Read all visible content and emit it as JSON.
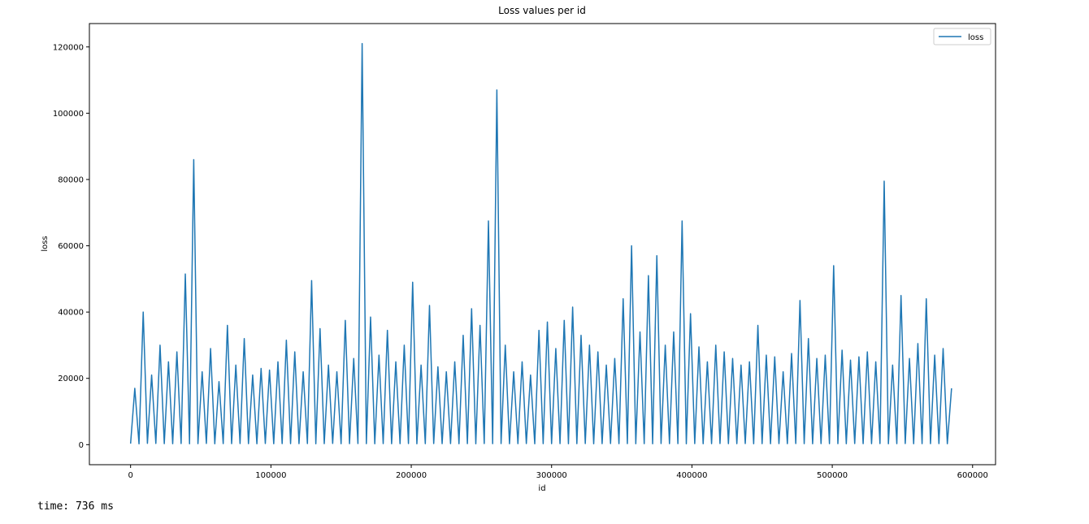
{
  "chart_data": {
    "type": "line",
    "title": "Loss values per id",
    "x_label": "id",
    "y_label": "loss",
    "x": [
      0,
      3000,
      6000,
      9000,
      12000,
      15000,
      18000,
      21000,
      24000,
      27000,
      30000,
      33000,
      36000,
      39000,
      42000,
      45000,
      48000,
      51000,
      54000,
      57000,
      60000,
      63000,
      66000,
      69000,
      72000,
      75000,
      78000,
      81000,
      84000,
      87000,
      90000,
      93000,
      96000,
      99000,
      102000,
      105000,
      108000,
      111000,
      114000,
      117000,
      120000,
      123000,
      126000,
      129000,
      132000,
      135000,
      138000,
      141000,
      144000,
      147000,
      150000,
      153000,
      156000,
      159000,
      162000,
      165000,
      168000,
      171000,
      174000,
      177000,
      180000,
      183000,
      186000,
      189000,
      192000,
      195000,
      198000,
      201000,
      204000,
      207000,
      210000,
      213000,
      216000,
      219000,
      222000,
      225000,
      228000,
      231000,
      234000,
      237000,
      240000,
      243000,
      246000,
      249000,
      252000,
      255000,
      258000,
      261000,
      264000,
      267000,
      270000,
      273000,
      276000,
      279000,
      282000,
      285000,
      288000,
      291000,
      294000,
      297000,
      300000,
      303000,
      306000,
      309000,
      312000,
      315000,
      318000,
      321000,
      324000,
      327000,
      330000,
      333000,
      336000,
      339000,
      342000,
      345000,
      348000,
      351000,
      354000,
      357000,
      360000,
      363000,
      366000,
      369000,
      372000,
      375000,
      378000,
      381000,
      384000,
      387000,
      390000,
      393000,
      396000,
      399000,
      402000,
      405000,
      408000,
      411000,
      414000,
      417000,
      420000,
      423000,
      426000,
      429000,
      432000,
      435000,
      438000,
      441000,
      444000,
      447000,
      450000,
      453000,
      456000,
      459000,
      462000,
      465000,
      468000,
      471000,
      474000,
      477000,
      480000,
      483000,
      486000,
      489000,
      492000,
      495000,
      498000,
      501000,
      504000,
      507000,
      510000,
      513000,
      516000,
      519000,
      522000,
      525000,
      528000,
      531000,
      534000,
      537000,
      540000,
      543000,
      546000,
      549000,
      552000,
      555000,
      558000,
      561000,
      564000,
      567000,
      570000,
      573000,
      576000,
      579000,
      582000,
      585000
    ],
    "series": [
      {
        "name": "loss",
        "color": "#1f77b4",
        "values": [
          300,
          17000,
          250,
          40000,
          400,
          21000,
          350,
          30000,
          300,
          25000,
          280,
          28000,
          320,
          51500,
          260,
          86000,
          300,
          22000,
          350,
          29000,
          270,
          19000,
          310,
          36000,
          290,
          24000,
          330,
          32000,
          300,
          21000,
          260,
          23000,
          340,
          22500,
          280,
          25000,
          310,
          31500,
          300,
          28000,
          290,
          22000,
          320,
          49500,
          270,
          35000,
          300,
          24000,
          350,
          22000,
          280,
          37500,
          300,
          26000,
          320,
          121000,
          290,
          38500,
          260,
          27000,
          310,
          34500,
          280,
          25000,
          300,
          30000,
          330,
          49000,
          270,
          24000,
          300,
          42000,
          320,
          23500,
          290,
          22000,
          310,
          25000,
          280,
          33000,
          300,
          41000,
          260,
          36000,
          330,
          67500,
          290,
          107000,
          310,
          30000,
          280,
          22000,
          300,
          25000,
          320,
          21000,
          270,
          34500,
          300,
          37000,
          290,
          29000,
          310,
          37500,
          280,
          41500,
          300,
          33000,
          320,
          30000,
          270,
          28000,
          300,
          24000,
          330,
          26000,
          290,
          44000,
          310,
          60000,
          280,
          34000,
          300,
          51000,
          260,
          57000,
          320,
          30000,
          290,
          34000,
          300,
          67500,
          270,
          39500,
          310,
          29500,
          280,
          25000,
          300,
          30000,
          320,
          28000,
          290,
          26000,
          300,
          24000,
          330,
          25000,
          270,
          36000,
          300,
          27000,
          280,
          26500,
          310,
          22000,
          290,
          27500,
          320,
          43500,
          300,
          32000,
          270,
          26000,
          310,
          27000,
          290,
          54000,
          300,
          28500,
          280,
          25500,
          320,
          26500,
          300,
          28000,
          290,
          25000,
          310,
          79500,
          270,
          24000,
          300,
          45000,
          320,
          26000,
          280,
          30500,
          300,
          44000,
          290,
          27000,
          310,
          29000,
          280,
          17000
        ]
      }
    ],
    "xlim": [
      -29350,
      616350
    ],
    "ylim": [
      -6050,
      127050
    ],
    "xticks": [
      0,
      100000,
      200000,
      300000,
      400000,
      500000,
      600000
    ],
    "yticks": [
      0,
      20000,
      40000,
      60000,
      80000,
      100000,
      120000
    ],
    "legend": "upper right"
  },
  "cell_output": "time: 736 ms"
}
